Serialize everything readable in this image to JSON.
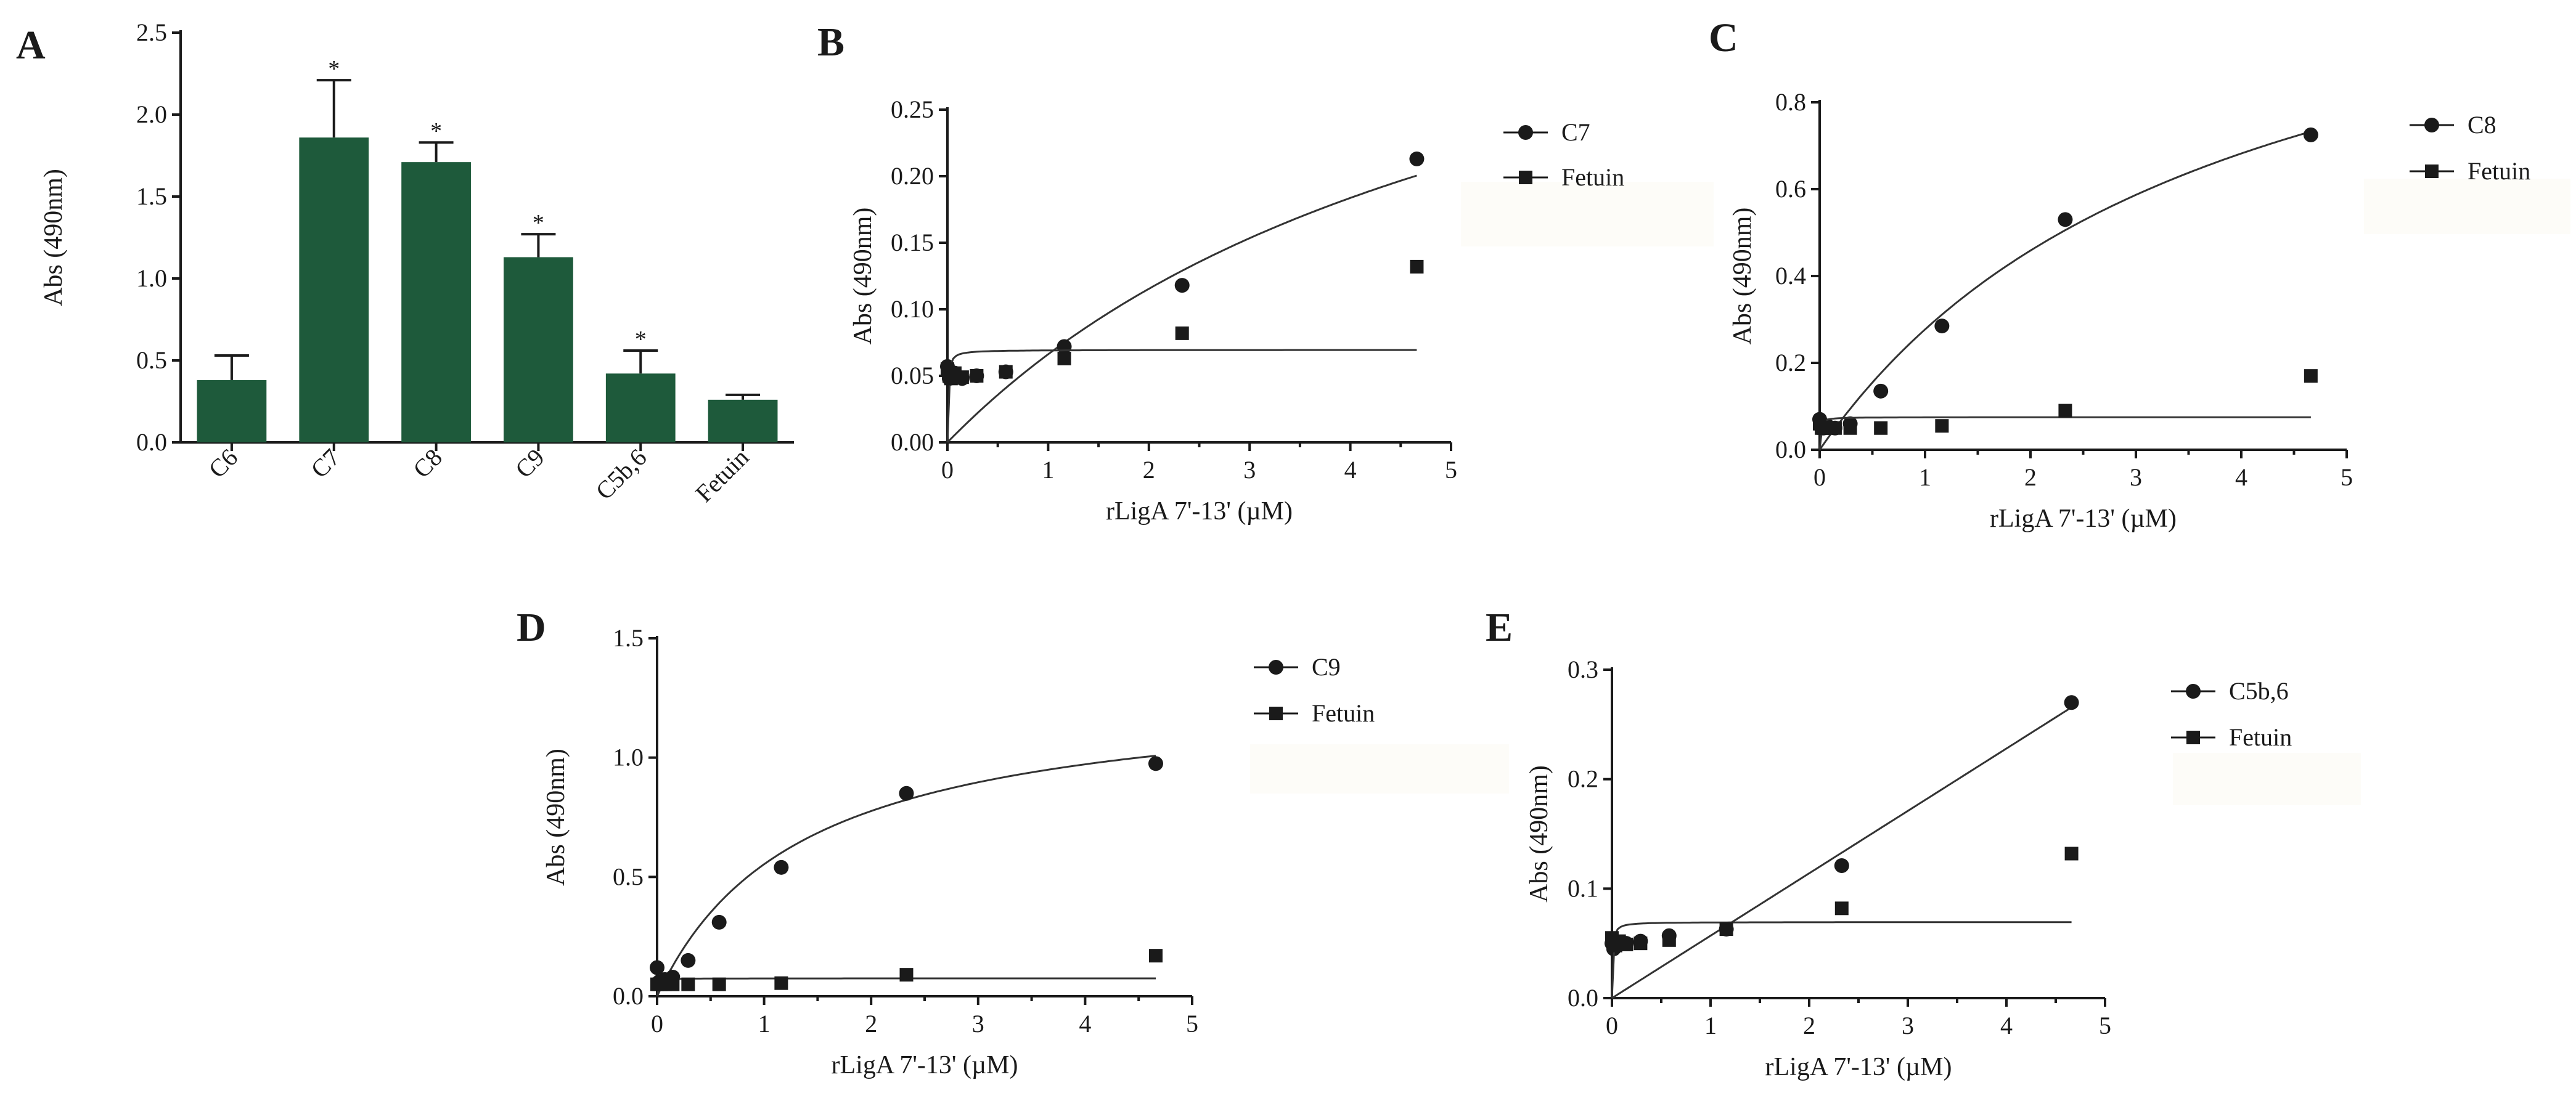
{
  "colors": {
    "bar_fill": "#1e5a3b",
    "ink": "#1a1a1a",
    "fit_line": "#333333"
  },
  "chart_data": [
    {
      "id": "A",
      "panel_letter": "A",
      "type": "bar",
      "ylabel": "Abs (490nm)",
      "xlabel": "",
      "ylim": [
        0,
        2.5
      ],
      "yticks": [
        0,
        0.5,
        1,
        1.5,
        2,
        2.5
      ],
      "ytick_labels": [
        "0.0",
        "0.5",
        "1.0",
        "1.5",
        "2.0",
        "2.5"
      ],
      "categories": [
        "C6",
        "C7",
        "C8",
        "C9",
        "C5b,6",
        "Fetuin"
      ],
      "values": [
        0.38,
        1.86,
        1.71,
        1.13,
        0.42,
        0.26
      ],
      "errors": [
        0.15,
        0.35,
        0.12,
        0.14,
        0.14,
        0.03
      ],
      "annotations": [
        "",
        "*",
        "*",
        "*",
        "*",
        ""
      ]
    },
    {
      "id": "B",
      "panel_letter": "B",
      "type": "scatter",
      "xlabel": "rLigA 7'-13' (µM)",
      "ylabel": "Abs (490nm)",
      "xlim": [
        0,
        5
      ],
      "ylim": [
        0,
        0.25
      ],
      "xticks": [
        0,
        1,
        2,
        3,
        4,
        5
      ],
      "xtick_labels": [
        "0",
        "1",
        "2",
        "3",
        "4",
        "5"
      ],
      "yticks": [
        0,
        0.05,
        0.1,
        0.15,
        0.2,
        0.25
      ],
      "ytick_labels": [
        "0.00",
        "0.05",
        "0.10",
        "0.15",
        "0.20",
        "0.25"
      ],
      "series": [
        {
          "name": "C7",
          "marker": "circle",
          "x": [
            0,
            0.018,
            0.036,
            0.073,
            0.146,
            0.29,
            0.58,
            1.16,
            2.33,
            4.66
          ],
          "y": [
            0.057,
            0.048,
            0.05,
            0.052,
            0.048,
            0.05,
            0.053,
            0.072,
            0.118,
            0.213
          ],
          "fit": {
            "model": "one-site-binding",
            "Bmax": 0.45,
            "Kd": 5.8,
            "x0": 0,
            "x1": 4.66
          }
        },
        {
          "name": "Fetuin",
          "marker": "square",
          "x": [
            0,
            0.018,
            0.036,
            0.073,
            0.146,
            0.29,
            0.58,
            1.16,
            2.33,
            4.66
          ],
          "y": [
            0.055,
            0.05,
            0.048,
            0.052,
            0.049,
            0.05,
            0.053,
            0.063,
            0.082,
            0.132
          ],
          "fit": {
            "model": "one-site-binding",
            "Bmax": 0.0695,
            "Kd": 0.006,
            "x0": 0,
            "x1": 4.66
          }
        }
      ]
    },
    {
      "id": "C",
      "panel_letter": "C",
      "type": "scatter",
      "xlabel": "rLigA 7'-13' (µM)",
      "ylabel": "Abs (490nm)",
      "xlim": [
        0,
        5
      ],
      "ylim": [
        0,
        0.8
      ],
      "xticks": [
        0,
        1,
        2,
        3,
        4,
        5
      ],
      "xtick_labels": [
        "0",
        "1",
        "2",
        "3",
        "4",
        "5"
      ],
      "yticks": [
        0,
        0.2,
        0.4,
        0.6,
        0.8
      ],
      "ytick_labels": [
        "0.0",
        "0.2",
        "0.4",
        "0.6",
        "0.8"
      ],
      "series": [
        {
          "name": "C8",
          "marker": "circle",
          "x": [
            0,
            0.018,
            0.036,
            0.073,
            0.146,
            0.29,
            0.58,
            1.16,
            2.33,
            4.66
          ],
          "y": [
            0.07,
            0.05,
            0.05,
            0.055,
            0.05,
            0.06,
            0.135,
            0.285,
            0.53,
            0.725
          ],
          "fit": {
            "model": "one-site-binding",
            "Bmax": 1.33,
            "Kd": 3.8,
            "x0": 0,
            "x1": 4.66
          }
        },
        {
          "name": "Fetuin",
          "marker": "square",
          "x": [
            0,
            0.018,
            0.036,
            0.073,
            0.146,
            0.29,
            0.58,
            1.16,
            2.33,
            4.66
          ],
          "y": [
            0.06,
            0.05,
            0.05,
            0.05,
            0.05,
            0.05,
            0.05,
            0.055,
            0.09,
            0.17
          ],
          "fit": {
            "model": "one-site-binding",
            "Bmax": 0.075,
            "Kd": 0.006,
            "x0": 0,
            "x1": 4.66
          }
        }
      ]
    },
    {
      "id": "D",
      "panel_letter": "D",
      "type": "scatter",
      "xlabel": "rLigA 7'-13' (µM)",
      "ylabel": "Abs (490nm)",
      "xlim": [
        0,
        5
      ],
      "ylim": [
        0,
        1.5
      ],
      "xticks": [
        0,
        1,
        2,
        3,
        4,
        5
      ],
      "xtick_labels": [
        "0",
        "1",
        "2",
        "3",
        "4",
        "5"
      ],
      "yticks": [
        0,
        0.5,
        1,
        1.5
      ],
      "ytick_labels": [
        "0.0",
        "0.5",
        "1.0",
        "1.5"
      ],
      "series": [
        {
          "name": "C9",
          "marker": "circle",
          "x": [
            0,
            0.018,
            0.036,
            0.073,
            0.146,
            0.29,
            0.58,
            1.16,
            2.33,
            4.66
          ],
          "y": [
            0.12,
            0.06,
            0.06,
            0.07,
            0.08,
            0.15,
            0.31,
            0.54,
            0.85,
            0.975
          ],
          "fit": {
            "model": "one-site-binding",
            "Bmax": 1.3,
            "Kd": 1.35,
            "x0": 0,
            "x1": 4.66
          }
        },
        {
          "name": "Fetuin",
          "marker": "square",
          "x": [
            0,
            0.018,
            0.036,
            0.073,
            0.146,
            0.29,
            0.58,
            1.16,
            2.33,
            4.66
          ],
          "y": [
            0.05,
            0.05,
            0.05,
            0.05,
            0.05,
            0.05,
            0.05,
            0.055,
            0.09,
            0.17
          ],
          "fit": {
            "model": "one-site-binding",
            "Bmax": 0.075,
            "Kd": 0.006,
            "x0": 0,
            "x1": 4.66
          }
        }
      ]
    },
    {
      "id": "E",
      "panel_letter": "E",
      "type": "scatter",
      "xlabel": "rLigA 7'-13' (µM)",
      "ylabel": "Abs (490nm)",
      "xlim": [
        0,
        5
      ],
      "ylim": [
        0,
        0.3
      ],
      "xticks": [
        0,
        1,
        2,
        3,
        4,
        5
      ],
      "xtick_labels": [
        "0",
        "1",
        "2",
        "3",
        "4",
        "5"
      ],
      "yticks": [
        0,
        0.1,
        0.2,
        0.3
      ],
      "ytick_labels": [
        "0.0",
        "0.1",
        "0.2",
        "0.3"
      ],
      "series": [
        {
          "name": "C5b,6",
          "marker": "circle",
          "x": [
            0,
            0.018,
            0.036,
            0.073,
            0.146,
            0.29,
            0.58,
            1.16,
            2.33,
            4.66
          ],
          "y": [
            0.05,
            0.045,
            0.048,
            0.05,
            0.05,
            0.052,
            0.057,
            0.063,
            0.121,
            0.27
          ],
          "fit": {
            "model": "linear",
            "slope": 0.057,
            "intercept": 0,
            "x0": 0,
            "x1": 4.66
          }
        },
        {
          "name": "Fetuin",
          "marker": "square",
          "x": [
            0,
            0.018,
            0.036,
            0.073,
            0.146,
            0.29,
            0.58,
            1.16,
            2.33,
            4.66
          ],
          "y": [
            0.055,
            0.05,
            0.048,
            0.052,
            0.049,
            0.05,
            0.053,
            0.063,
            0.082,
            0.132
          ],
          "fit": {
            "model": "one-site-binding",
            "Bmax": 0.0695,
            "Kd": 0.006,
            "x0": 0,
            "x1": 4.66
          }
        }
      ]
    }
  ]
}
